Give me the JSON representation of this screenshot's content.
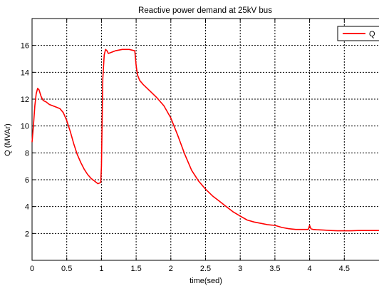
{
  "chart_data": {
    "type": "line",
    "title": "Reactive power demand at 25kV bus",
    "xlabel": "time(sed)",
    "ylabel": "Q (MVAr)",
    "xlim": [
      0,
      5
    ],
    "ylim": [
      0,
      18
    ],
    "xticks": [
      0,
      0.5,
      1,
      1.5,
      2,
      2.5,
      3,
      3.5,
      4,
      4.5
    ],
    "xtick_labels": [
      "0",
      "0.5",
      "1",
      "1.5",
      "2",
      "2.5",
      "3",
      "3.5",
      "4",
      "4.5"
    ],
    "yticks": [
      2,
      4,
      6,
      8,
      10,
      12,
      14,
      16
    ],
    "ytick_labels": [
      "2",
      "4",
      "6",
      "8",
      "10",
      "12",
      "14",
      "16"
    ],
    "grid": true,
    "legend": {
      "position": "top-right",
      "entries": [
        "Q"
      ]
    },
    "series": [
      {
        "name": "Q",
        "color": "#ff0000",
        "x": [
          0,
          0.02,
          0.04,
          0.06,
          0.08,
          0.1,
          0.13,
          0.16,
          0.2,
          0.25,
          0.3,
          0.35,
          0.4,
          0.45,
          0.5,
          0.55,
          0.6,
          0.65,
          0.7,
          0.75,
          0.8,
          0.85,
          0.9,
          0.95,
          0.99,
          1.0,
          1.01,
          1.02,
          1.04,
          1.06,
          1.08,
          1.1,
          1.15,
          1.2,
          1.3,
          1.4,
          1.48,
          1.5,
          1.52,
          1.55,
          1.6,
          1.7,
          1.8,
          1.9,
          2.0,
          2.1,
          2.2,
          2.3,
          2.4,
          2.5,
          2.6,
          2.7,
          2.8,
          2.9,
          3.0,
          3.1,
          3.2,
          3.3,
          3.4,
          3.5,
          3.6,
          3.7,
          3.8,
          3.9,
          3.98,
          4.0,
          4.02,
          4.05,
          4.1,
          4.2,
          4.3,
          4.4,
          4.5,
          4.6,
          4.7,
          4.8,
          4.9,
          5.0
        ],
        "y": [
          8.8,
          10.0,
          11.5,
          12.4,
          12.8,
          12.7,
          12.2,
          11.9,
          11.8,
          11.6,
          11.5,
          11.4,
          11.3,
          11.0,
          10.4,
          9.6,
          8.7,
          7.9,
          7.3,
          6.8,
          6.4,
          6.1,
          5.9,
          5.7,
          5.8,
          7.0,
          10.5,
          13.5,
          15.3,
          15.7,
          15.6,
          15.4,
          15.5,
          15.6,
          15.7,
          15.7,
          15.6,
          14.5,
          13.8,
          13.4,
          13.1,
          12.6,
          12.1,
          11.5,
          10.6,
          9.3,
          7.9,
          6.7,
          5.9,
          5.3,
          4.8,
          4.4,
          4.0,
          3.6,
          3.3,
          3.0,
          2.85,
          2.75,
          2.65,
          2.6,
          2.45,
          2.35,
          2.3,
          2.3,
          2.3,
          2.6,
          2.35,
          2.3,
          2.28,
          2.25,
          2.22,
          2.2,
          2.2,
          2.2,
          2.22,
          2.22,
          2.22,
          2.22
        ]
      }
    ]
  }
}
